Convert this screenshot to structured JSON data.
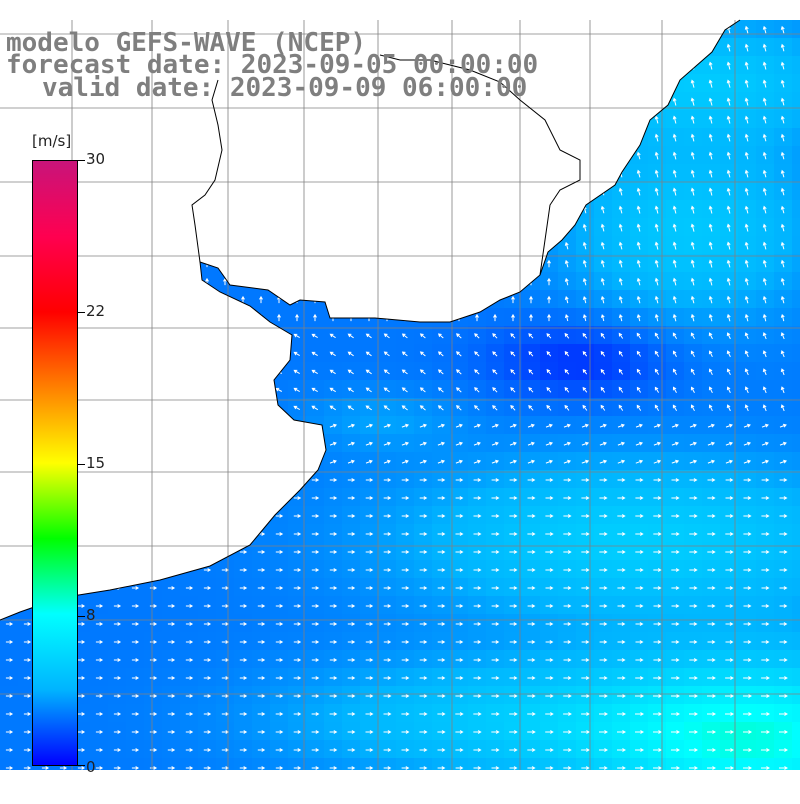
{
  "header": {
    "line1": "modelo GEFS-WAVE (NCEP)",
    "line2": "forecast date: 2023-09-05 00:00:00",
    "line3": "valid date: 2023-09-09 06:00:00"
  },
  "colorbar": {
    "unit": "[m/s]",
    "ticks": [
      "30",
      "22",
      "15",
      "8",
      "0"
    ],
    "tick_values": [
      30,
      22,
      15,
      8,
      0
    ],
    "min": 0,
    "max": 30,
    "colors": [
      "#0000ff",
      "#00b4ff",
      "#00ffff",
      "#00ff00",
      "#ffff00",
      "#ff8000",
      "#ff0000",
      "#ff0050",
      "#c8147a"
    ]
  },
  "chart_data": {
    "type": "heatmap",
    "variable": "wind speed and direction",
    "unit": "[m/s]",
    "value_range": [
      0,
      30
    ],
    "colors": {
      "land": "#ffffff",
      "coast": "#000000",
      "grid": "#808080",
      "arrows": "#ffffff"
    }
  }
}
